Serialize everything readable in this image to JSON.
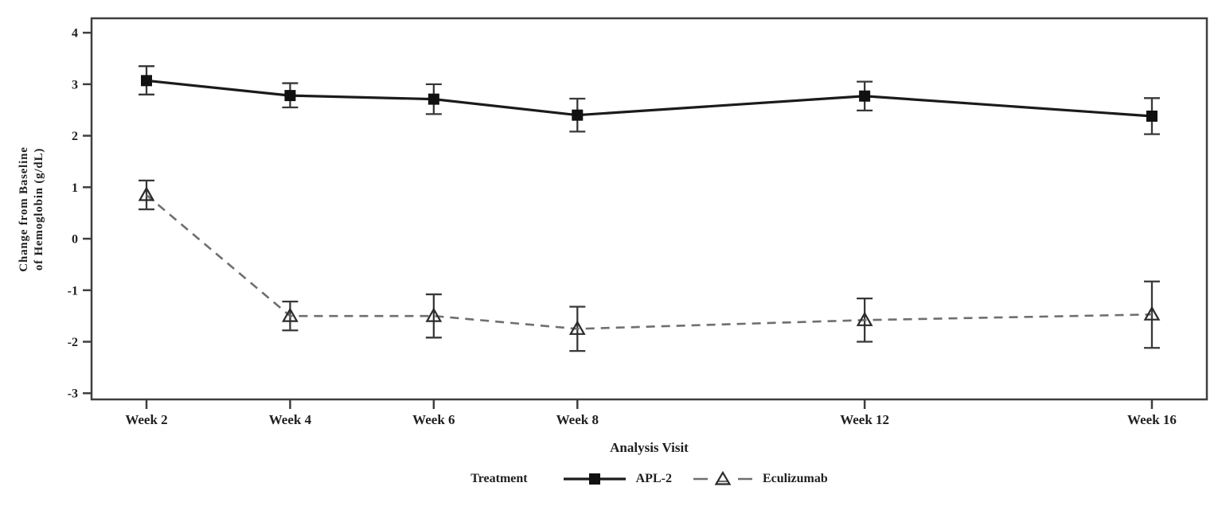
{
  "chart_data": {
    "type": "line",
    "title": "",
    "xlabel": "Analysis Visit",
    "ylabel_lines": [
      "Change from Baseline",
      "of Hemoglobin (g/dL)"
    ],
    "legend_title": "Treatment",
    "legend_position": "bottom-center",
    "grid": false,
    "x_weeks": [
      2,
      4,
      6,
      8,
      12,
      16
    ],
    "x_tick_labels": [
      "Week 2",
      "Week 4",
      "Week 6",
      "Week 8",
      "Week 12",
      "Week 16"
    ],
    "y_ticks": [
      -3,
      -2,
      -1,
      0,
      1,
      2,
      3,
      4
    ],
    "xlim": [
      1.235,
      16.765
    ],
    "ylim": [
      -3.12,
      4.28
    ],
    "series": [
      {
        "name": "APL-2",
        "marker": "filled-square",
        "line_style": "solid",
        "values": [
          3.07,
          2.78,
          2.71,
          2.4,
          2.77,
          2.38
        ],
        "err_low": [
          2.8,
          2.55,
          2.42,
          2.08,
          2.49,
          2.03
        ],
        "err_high": [
          3.35,
          3.02,
          3.0,
          2.72,
          3.05,
          2.73
        ]
      },
      {
        "name": "Eculizumab",
        "marker": "open-triangle",
        "line_style": "dashed",
        "values": [
          0.85,
          -1.5,
          -1.5,
          -1.75,
          -1.58,
          -1.47
        ],
        "err_low": [
          0.57,
          -1.78,
          -1.92,
          -2.18,
          -2.0,
          -2.12
        ],
        "err_high": [
          1.13,
          -1.22,
          -1.08,
          -1.32,
          -1.16,
          -0.83
        ]
      }
    ],
    "colors": {
      "text": "#1f1f1f",
      "axis": "#3f3f3f",
      "error_bar": "#383838",
      "apl2_line": "#1b1b1b",
      "apl2_marker": "#111111",
      "ecu_line": "#6f6f6f",
      "ecu_marker_outline": "#2a2a2a",
      "background": "#ffffff"
    }
  }
}
